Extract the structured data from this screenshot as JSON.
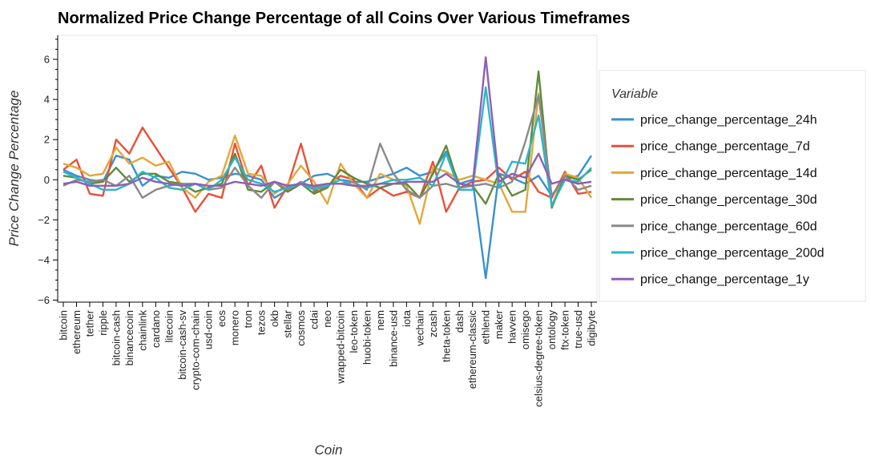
{
  "chart_data": {
    "type": "line",
    "title": "Normalized Price Change Percentage of all Coins Over Various Timeframes",
    "xlabel": "Coin",
    "ylabel": "Price Change Percentage",
    "ylim": [
      -6.1,
      7.2
    ],
    "yticks": [
      -6,
      -4,
      -2,
      0,
      2,
      4,
      6
    ],
    "legend_title": "Variable",
    "legend_position": "right",
    "categories": [
      "bitcoin",
      "ethereum",
      "tether",
      "ripple",
      "bitcoin-cash",
      "binancecoin",
      "chainlink",
      "cardano",
      "litecoin",
      "bitcoin-cash-sv",
      "crypto-com-chain",
      "usd-coin",
      "eos",
      "monero",
      "tron",
      "tezos",
      "okb",
      "stellar",
      "cosmos",
      "cdai",
      "neo",
      "wrapped-bitcoin",
      "leo-token",
      "huobi-token",
      "nem",
      "binance-usd",
      "iota",
      "vechain",
      "zcash",
      "theta-token",
      "dash",
      "ethereum-classic",
      "ethlend",
      "maker",
      "havven",
      "omisego",
      "celsius-degree-token",
      "ontology",
      "ftx-token",
      "true-usd",
      "digibyte"
    ],
    "series": [
      {
        "name": "price_change_percentage_24h",
        "color": "#3a8fd3",
        "values": [
          0.5,
          0.2,
          0.0,
          -0.1,
          1.2,
          1.0,
          -0.3,
          0.2,
          0.1,
          0.4,
          0.3,
          0.0,
          0.1,
          0.3,
          0.2,
          0.0,
          -0.9,
          -0.5,
          -0.2,
          0.2,
          0.3,
          0.0,
          -0.1,
          -0.1,
          0.1,
          0.3,
          0.6,
          0.2,
          0.4,
          1.4,
          -0.2,
          0.0,
          -4.9,
          0.3,
          0.1,
          -0.2,
          0.2,
          -0.8,
          0.0,
          0.2,
          1.2
        ]
      },
      {
        "name": "price_change_percentage_7d",
        "color": "#e8503a",
        "values": [
          0.5,
          1.0,
          -0.7,
          -0.8,
          2.0,
          1.3,
          2.6,
          1.6,
          0.6,
          -0.4,
          -1.6,
          -0.7,
          -0.9,
          1.8,
          -0.3,
          0.7,
          -1.4,
          -0.3,
          1.8,
          -0.6,
          -0.3,
          0.2,
          0.0,
          -0.9,
          -0.4,
          -0.8,
          -0.6,
          -0.9,
          0.9,
          -1.6,
          -0.4,
          -0.1,
          0.0,
          0.6,
          0.0,
          0.4,
          -0.6,
          -0.9,
          0.4,
          -0.7,
          -0.6
        ]
      },
      {
        "name": "price_change_percentage_14d",
        "color": "#e3a73a",
        "values": [
          0.8,
          0.6,
          0.2,
          0.3,
          1.6,
          0.8,
          1.1,
          0.7,
          0.9,
          -0.4,
          -0.9,
          -0.1,
          0.2,
          2.2,
          0.3,
          0.2,
          -0.7,
          -0.2,
          0.7,
          -0.1,
          -1.2,
          0.8,
          -0.2,
          -0.9,
          0.3,
          0.0,
          -0.3,
          -2.2,
          0.6,
          0.4,
          0.0,
          0.2,
          0.0,
          -0.2,
          -1.6,
          -1.6,
          4.3,
          -1.3,
          0.3,
          0.1,
          -0.9
        ]
      },
      {
        "name": "price_change_percentage_30d",
        "color": "#5f8a3a",
        "values": [
          0.2,
          0.1,
          -0.2,
          -0.1,
          0.6,
          -0.1,
          0.3,
          0.3,
          -0.1,
          -0.2,
          -0.6,
          -0.4,
          -0.2,
          1.3,
          -0.5,
          -0.6,
          -0.1,
          -0.6,
          -0.2,
          -0.7,
          -0.4,
          0.5,
          0.1,
          -0.2,
          -0.4,
          -0.2,
          -0.2,
          -0.9,
          0.3,
          1.7,
          -0.4,
          -0.3,
          -1.2,
          0.3,
          -0.8,
          -0.5,
          5.4,
          -1.4,
          0.2,
          0.0,
          0.5
        ]
      },
      {
        "name": "price_change_percentage_60d",
        "color": "#8a8a8a",
        "values": [
          -0.3,
          0.0,
          -0.1,
          0.0,
          -0.3,
          0.2,
          -0.9,
          -0.5,
          -0.3,
          -0.2,
          -0.2,
          -0.5,
          -0.4,
          0.6,
          -0.3,
          -0.9,
          -0.1,
          -0.5,
          -0.1,
          -0.4,
          -0.2,
          -0.2,
          -0.1,
          -0.5,
          1.8,
          0.3,
          -0.5,
          -0.9,
          -0.3,
          -0.2,
          -0.4,
          -0.3,
          -0.2,
          -0.4,
          -0.1,
          1.9,
          4.2,
          -0.8,
          0.2,
          -0.5,
          -0.3
        ]
      },
      {
        "name": "price_change_percentage_200d",
        "color": "#2bb5c9",
        "values": [
          0.4,
          0.1,
          -0.2,
          -0.5,
          -0.5,
          -0.2,
          0.4,
          0.1,
          -0.4,
          -0.5,
          -0.2,
          -0.5,
          0.0,
          1.1,
          0.0,
          -0.2,
          -0.6,
          -0.4,
          -0.2,
          -0.5,
          -0.3,
          0.0,
          -0.3,
          -0.4,
          -0.2,
          0.0,
          0.0,
          0.1,
          -0.3,
          1.3,
          -0.5,
          -0.5,
          4.6,
          -0.4,
          0.9,
          0.8,
          3.2,
          -1.3,
          0.0,
          -0.1,
          0.6
        ]
      },
      {
        "name": "price_change_percentage_1y",
        "color": "#8e5fb5",
        "values": [
          -0.2,
          -0.1,
          -0.3,
          -0.3,
          -0.3,
          -0.2,
          0.1,
          -0.1,
          -0.2,
          -0.3,
          -0.2,
          -0.3,
          -0.3,
          -0.1,
          -0.2,
          -0.3,
          -0.1,
          -0.3,
          -0.2,
          -0.3,
          -0.2,
          -0.2,
          -0.3,
          -0.3,
          -0.2,
          -0.2,
          -0.1,
          -0.1,
          -0.1,
          0.3,
          -0.2,
          -0.3,
          6.1,
          -0.1,
          0.3,
          0.1,
          1.3,
          -0.2,
          0.0,
          -0.2,
          -0.1
        ]
      }
    ]
  }
}
